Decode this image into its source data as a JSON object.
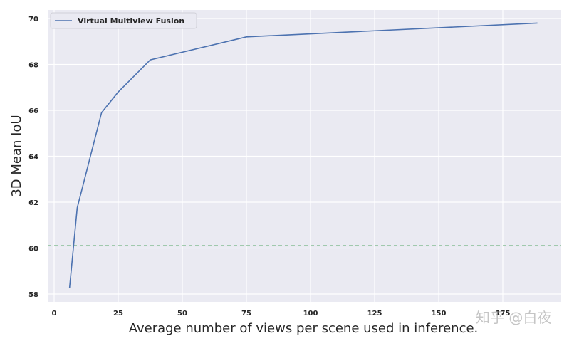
{
  "chart_data": {
    "type": "line",
    "title": "",
    "xlabel": "Average number of views per scene used in inference.",
    "ylabel": "3D Mean IoU",
    "xlim": [
      -4,
      202
    ],
    "ylim": [
      57.65,
      70.4
    ],
    "xticks": [
      0,
      25,
      50,
      75,
      100,
      125,
      150,
      175
    ],
    "yticks": [
      58,
      60,
      62,
      64,
      66,
      68,
      70
    ],
    "grid": true,
    "legend_position": "upper left",
    "series": [
      {
        "name": "Virtual Multiview Fusion",
        "color": "#4c72b0",
        "x": [
          6,
          9,
          18.5,
          25,
          37.5,
          75,
          188.5
        ],
        "y": [
          58.25,
          61.75,
          65.9,
          66.8,
          68.2,
          69.2,
          69.8
        ]
      }
    ],
    "reference_lines": [
      {
        "orientation": "horizontal",
        "y": 60.1,
        "style": "dashed",
        "color": "#55a868",
        "label": ""
      }
    ]
  },
  "legend": {
    "label": "Virtual Multiview Fusion"
  },
  "watermark": "知乎 @白夜",
  "colors": {
    "plot_bg": "#eaeaf2",
    "grid": "#ffffff",
    "line": "#4c72b0",
    "baseline": "#55a868"
  }
}
